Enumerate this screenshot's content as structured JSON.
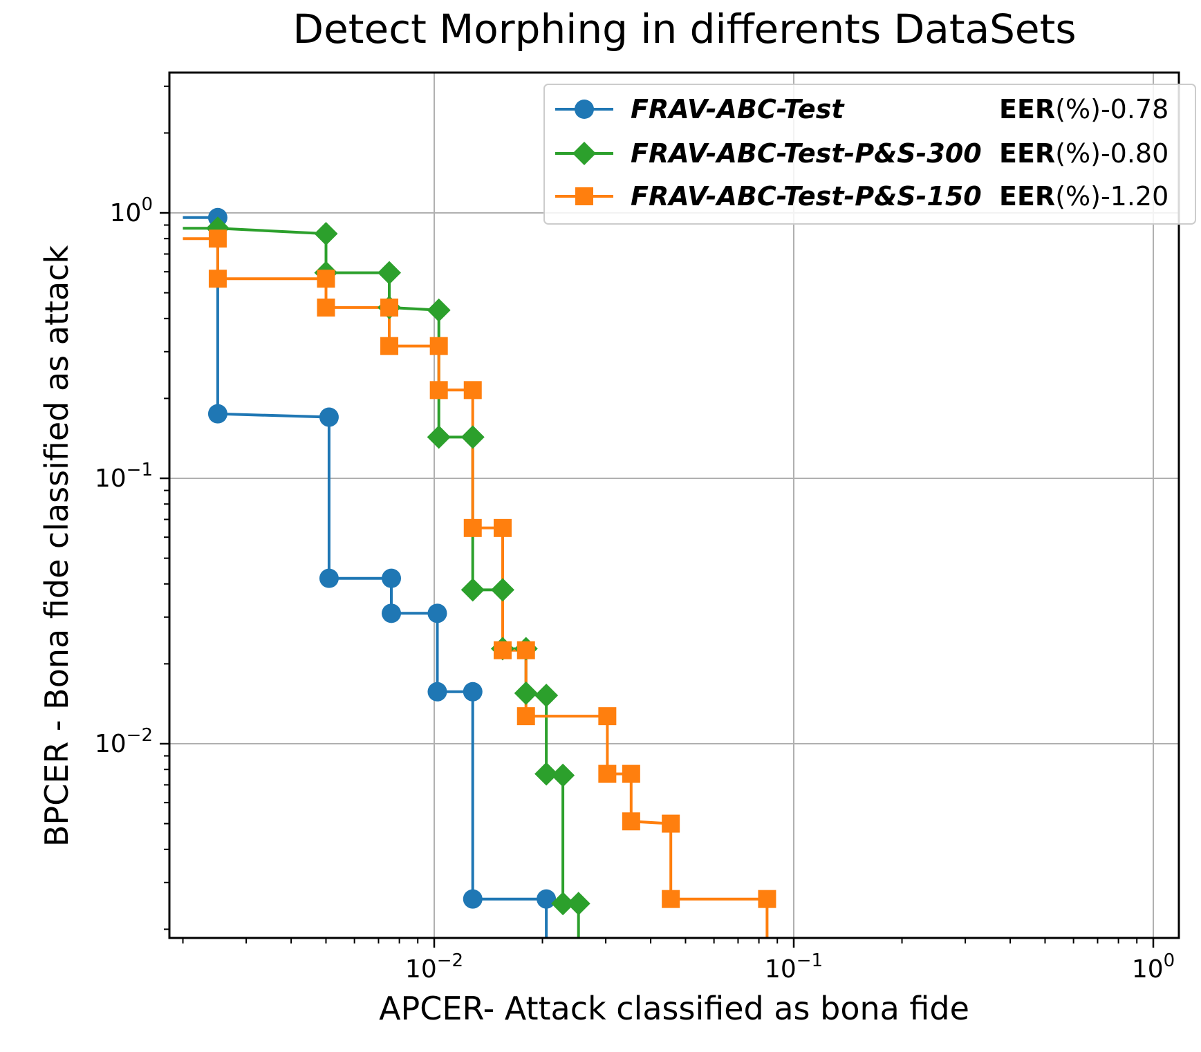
{
  "chart_data": {
    "type": "line",
    "title": "Detect Morphing in differents DataSets",
    "xlabel": "APCER- Attack classified as bona fide",
    "ylabel": "BPCER - Bona fide classified as attack",
    "xscale": "log",
    "yscale": "log",
    "xlim": [
      0.002,
      1.3
    ],
    "ylim": [
      0.0018,
      3.0
    ],
    "grid": true,
    "legend_position": "top-right",
    "x_ticks": [
      {
        "value": 0.01,
        "base": "10",
        "exp": "−2"
      },
      {
        "value": 0.1,
        "base": "10",
        "exp": "−1"
      },
      {
        "value": 1,
        "base": "10",
        "exp": "0"
      }
    ],
    "y_ticks": [
      {
        "value": 1,
        "base": "10",
        "exp": "0"
      },
      {
        "value": 0.1,
        "base": "10",
        "exp": "−1"
      },
      {
        "value": 0.01,
        "base": "10",
        "exp": "−2"
      }
    ],
    "series": [
      {
        "name": "FRAV-ABC-Test",
        "eer_label": "EER",
        "eer_value": "(%)-0.78",
        "color": "#1f77b4",
        "marker": "circle",
        "points": [
          [
            0.0025,
            0.96
          ],
          [
            0.0025,
            0.175
          ],
          [
            0.0051,
            0.17
          ],
          [
            0.0051,
            0.042
          ],
          [
            0.0076,
            0.042
          ],
          [
            0.0076,
            0.031
          ],
          [
            0.0102,
            0.031
          ],
          [
            0.0102,
            0.0157
          ],
          [
            0.0128,
            0.0157
          ],
          [
            0.0128,
            0.0026
          ],
          [
            0.0205,
            0.0026
          ]
        ],
        "tail": [
          [
            0.0205,
            0.0018
          ]
        ],
        "lead": [
          [
            0.002,
            0.96
          ]
        ]
      },
      {
        "name": "FRAV-ABC-Test-P&S-300",
        "eer_label": "EER",
        "eer_value": "(%)-0.80",
        "color": "#2ca02c",
        "marker": "diamond",
        "points": [
          [
            0.0025,
            0.875
          ],
          [
            0.005,
            0.835
          ],
          [
            0.005,
            0.595
          ],
          [
            0.0075,
            0.595
          ],
          [
            0.0075,
            0.44
          ],
          [
            0.0103,
            0.43
          ],
          [
            0.0103,
            0.143
          ],
          [
            0.0128,
            0.143
          ],
          [
            0.0128,
            0.038
          ],
          [
            0.0155,
            0.038
          ],
          [
            0.0155,
            0.0228
          ],
          [
            0.018,
            0.0228
          ],
          [
            0.018,
            0.0155
          ],
          [
            0.0205,
            0.0152
          ],
          [
            0.0205,
            0.0077
          ],
          [
            0.0228,
            0.0076
          ],
          [
            0.0228,
            0.0025
          ],
          [
            0.0252,
            0.0025
          ]
        ],
        "tail": [
          [
            0.0252,
            0.0018
          ]
        ],
        "lead": [
          [
            0.002,
            0.875
          ]
        ]
      },
      {
        "name": "FRAV-ABC-Test-P&S-150",
        "eer_label": "EER",
        "eer_value": "(%)-1.20",
        "color": "#ff7f0e",
        "marker": "square",
        "points": [
          [
            0.0025,
            0.8
          ],
          [
            0.0025,
            0.565
          ],
          [
            0.005,
            0.565
          ],
          [
            0.005,
            0.44
          ],
          [
            0.0075,
            0.44
          ],
          [
            0.0075,
            0.315
          ],
          [
            0.0103,
            0.315
          ],
          [
            0.0103,
            0.215
          ],
          [
            0.0128,
            0.215
          ],
          [
            0.0128,
            0.065
          ],
          [
            0.0155,
            0.065
          ],
          [
            0.0155,
            0.0225
          ],
          [
            0.018,
            0.0225
          ],
          [
            0.018,
            0.0127
          ],
          [
            0.0303,
            0.0127
          ],
          [
            0.0303,
            0.0077
          ],
          [
            0.0353,
            0.0077
          ],
          [
            0.0353,
            0.0051
          ],
          [
            0.0455,
            0.005
          ],
          [
            0.0455,
            0.0026
          ],
          [
            0.0843,
            0.0026
          ]
        ],
        "tail": [
          [
            0.0843,
            0.0018
          ]
        ],
        "lead": [
          [
            0.002,
            0.8
          ]
        ]
      }
    ]
  }
}
